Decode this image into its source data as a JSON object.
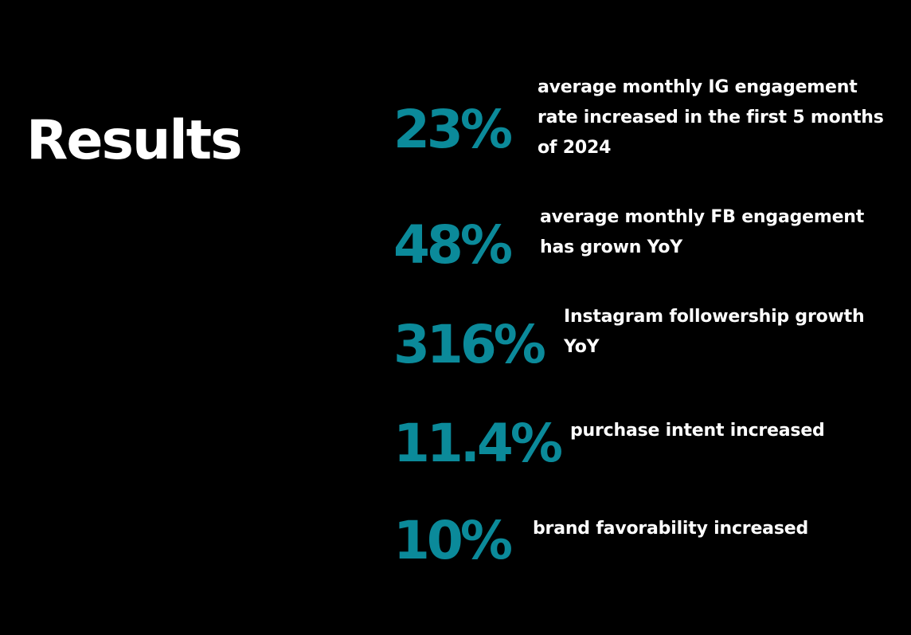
{
  "title": "Results",
  "accent_color": "#0b8a9a",
  "stats": [
    {
      "value": "23%",
      "desc_lines": [
        "average monthly IG engagement",
        "rate increased in the first 5 months",
        "of 2024"
      ]
    },
    {
      "value": "48%",
      "desc_lines": [
        "average monthly FB engagement",
        "has grown YoY"
      ]
    },
    {
      "value": "316%",
      "desc_lines": [
        "Instagram followership growth",
        "YoY"
      ]
    },
    {
      "value": "11.4%",
      "desc_lines": [
        "purchase intent increased"
      ]
    },
    {
      "value": "10%",
      "desc_lines": [
        "brand favorability increased"
      ]
    }
  ]
}
